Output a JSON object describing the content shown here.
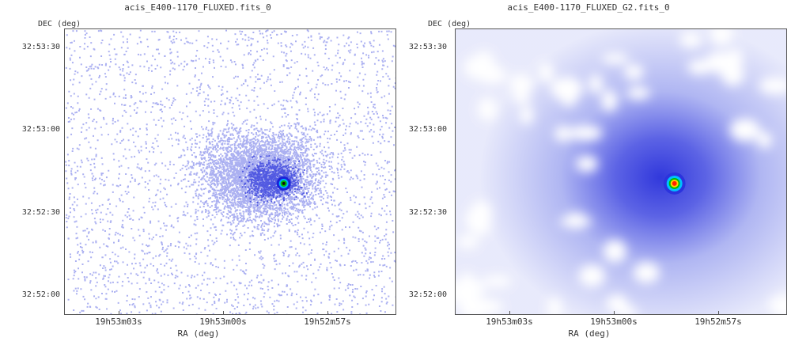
{
  "panels": [
    {
      "title": "acis_E400-1170_FLUXED.fits_0",
      "ylabel": "DEC (deg)",
      "xlabel": "RA (deg)",
      "yticks": [
        "32:53:30",
        "32:53:00",
        "32:52:30",
        "32:52:00"
      ],
      "xticks": [
        "19h53m03s",
        "19h53m00s",
        "19h52m57s"
      ],
      "style": "raw-counts"
    },
    {
      "title": "acis_E400-1170_FLUXED_G2.fits_0",
      "ylabel": "DEC (deg)",
      "xlabel": "RA (deg)",
      "yticks": [
        "32:53:30",
        "32:53:00",
        "32:52:30",
        "32:52:00"
      ],
      "xticks": [
        "19h53m03s",
        "19h53m00s",
        "19h52m57s"
      ],
      "style": "smoothed"
    }
  ],
  "colors": {
    "faint": "#c8cdf5",
    "mid": "#6f78e8",
    "core": "#1a22d8",
    "peak_ring": "#00c000",
    "peak_center": "#ff2000"
  }
}
